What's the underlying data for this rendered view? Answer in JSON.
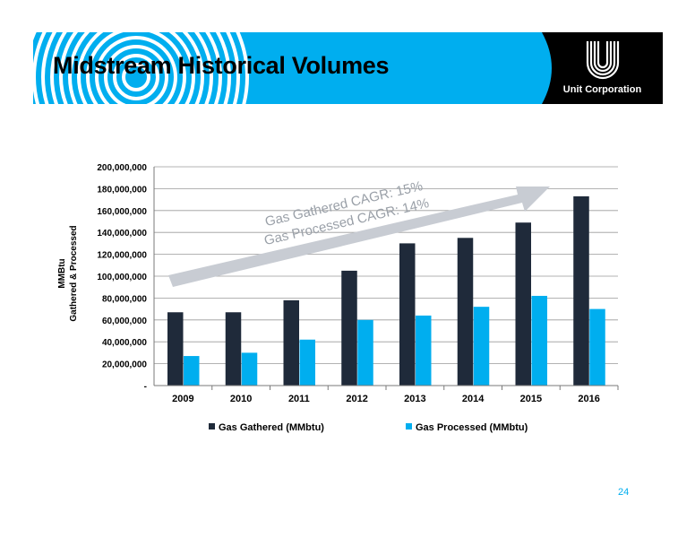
{
  "slide": {
    "title": "Midstream Historical Volumes",
    "logo_text": "Unit Corporation",
    "page_number": "24",
    "banner_color": "#00aeef",
    "logo_bg": "#000000"
  },
  "chart_data": {
    "type": "bar",
    "title": "",
    "categories": [
      "2009",
      "2010",
      "2011",
      "2012",
      "2013",
      "2014",
      "2015",
      "2016"
    ],
    "series": [
      {
        "name": "Gas Gathered (MMbtu)",
        "color": "#1f2a3a",
        "values": [
          67000000,
          67000000,
          78000000,
          105000000,
          130000000,
          135000000,
          149000000,
          173000000
        ]
      },
      {
        "name": "Gas Processed (MMbtu)",
        "color": "#00aeef",
        "values": [
          27000000,
          30000000,
          42000000,
          60000000,
          64000000,
          72000000,
          82000000,
          70000000
        ]
      }
    ],
    "ylabel_lines": [
      "MMBtu",
      "Gathered & Processed"
    ],
    "ylim": [
      0,
      200000000
    ],
    "ytick_step": 20000000,
    "ytick_labels": [
      "-",
      "20,000,000",
      "40,000,000",
      "60,000,000",
      "80,000,000",
      "100,000,000",
      "120,000,000",
      "140,000,000",
      "160,000,000",
      "180,000,000",
      "200,000,000"
    ],
    "grid": true,
    "legend_position": "bottom",
    "annotation": {
      "lines": [
        "Gas Gathered CAGR: 15%",
        "Gas Processed CAGR: 14%"
      ],
      "arrow_color": "#c8ccd3",
      "text_color": "#9aa0a8"
    }
  }
}
